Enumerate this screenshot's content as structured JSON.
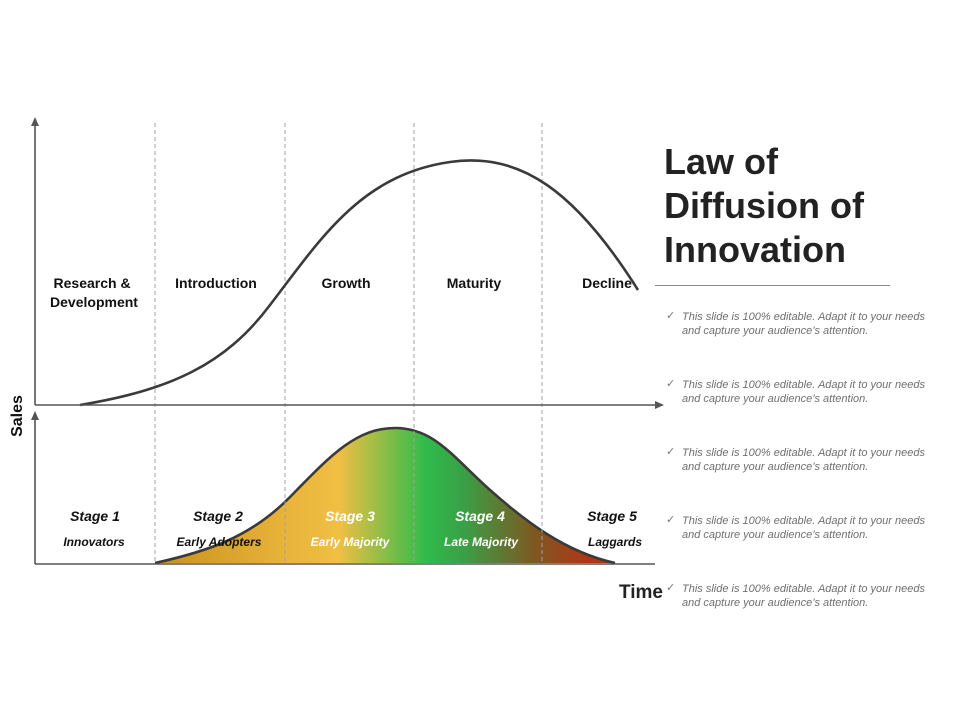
{
  "title_lines": [
    "Law of",
    "Diffusion of",
    "Innovation"
  ],
  "axes": {
    "y_label": "Sales",
    "x_label": "Time"
  },
  "phases": [
    {
      "lines": [
        "Research &",
        "Development"
      ]
    },
    {
      "lines": [
        "Introduction"
      ]
    },
    {
      "lines": [
        "Growth"
      ]
    },
    {
      "lines": [
        "Maturity"
      ]
    },
    {
      "lines": [
        "Decline"
      ]
    }
  ],
  "stages": [
    {
      "label": "Stage 1",
      "group": "Innovators"
    },
    {
      "label": "Stage 2",
      "group": "Early Adopters"
    },
    {
      "label": "Stage 3",
      "group": "Early Majority"
    },
    {
      "label": "Stage 4",
      "group": "Late Majority"
    },
    {
      "label": "Stage 5",
      "group": "Laggards"
    }
  ],
  "stage_text_colors": [
    "#111111",
    "#111111",
    "#ffffff",
    "#ffffff",
    "#111111"
  ],
  "gradient_colors": [
    "#c8901a",
    "#e8b33a",
    "#f0bf44",
    "#2fbb4a",
    "#3aa047",
    "#7d5a21",
    "#c72512"
  ],
  "notes": [
    {
      "check": "✓",
      "text": "This slide is 100% editable. Adapt it to your needs and capture your audience’s attention."
    },
    {
      "check": "✓",
      "text": "This slide is 100% editable. Adapt it to your needs and capture your audience’s attention."
    },
    {
      "check": "✓",
      "text": "This slide is 100% editable. Adapt it to your needs and capture your audience’s attention."
    },
    {
      "check": "✓",
      "text": "This slide is 100% editable. Adapt it to your needs and capture your audience’s attention."
    },
    {
      "check": "✓",
      "text": "This slide is 100% editable. Adapt it to your needs and capture your audience’s attention."
    }
  ]
}
